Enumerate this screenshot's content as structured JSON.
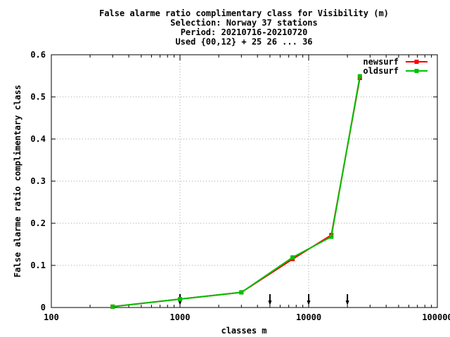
{
  "chart_data": {
    "type": "line",
    "title_lines": [
      "False alarme ratio complimentary class  for Visibility (m)",
      "Selection: Norway     37 stations",
      "Period: 20210716-20210720",
      "Used {00,12} + 25 26 ... 36"
    ],
    "xlabel": "classes m",
    "ylabel": "False alarme ratio complimentary class",
    "x_scale": "log",
    "xlim": [
      100,
      100000
    ],
    "ylim": [
      0,
      0.6
    ],
    "x_ticks": [
      100,
      1000,
      10000,
      100000
    ],
    "x_tick_labels": [
      "100",
      "1000",
      "10000",
      "100000"
    ],
    "y_ticks": [
      0,
      0.1,
      0.2,
      0.3,
      0.4,
      0.5,
      0.6
    ],
    "y_tick_labels": [
      "0",
      "0.1",
      "0.2",
      "0.3",
      "0.4",
      "0.5",
      "0.6"
    ],
    "grid": true,
    "legend_position": "top-right",
    "class_markers_x": [
      1000,
      5000,
      10000,
      20000
    ],
    "series": [
      {
        "name": "newsurf",
        "color": "#ff0000",
        "x": [
          300,
          1000,
          3000,
          7500,
          15000,
          25000
        ],
        "y": [
          0.002,
          0.02,
          0.036,
          0.115,
          0.172,
          0.545
        ]
      },
      {
        "name": "oldsurf",
        "color": "#00c000",
        "x": [
          300,
          1000,
          3000,
          7500,
          15000,
          25000
        ],
        "y": [
          0.002,
          0.02,
          0.036,
          0.119,
          0.168,
          0.549
        ]
      }
    ]
  }
}
